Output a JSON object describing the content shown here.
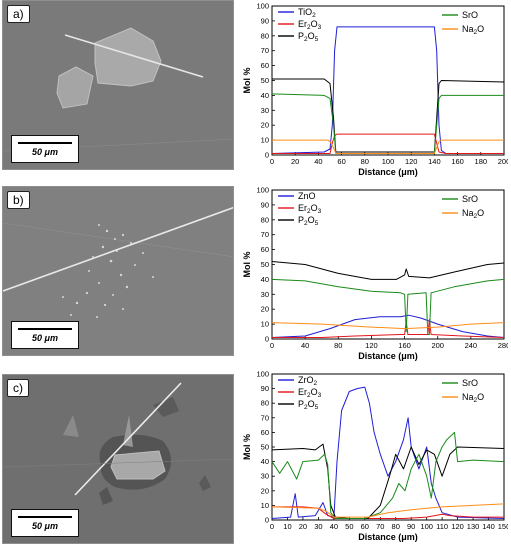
{
  "panels": [
    {
      "label": "a)",
      "scale_label": "50 μm"
    },
    {
      "label": "b)",
      "scale_label": "50 μm"
    },
    {
      "label": "c)",
      "scale_label": "50 μm"
    }
  ],
  "chart_data": [
    {
      "type": "line",
      "xlabel": "Distance (μm)",
      "ylabel": "Mol %",
      "xlim": [
        0,
        200
      ],
      "ylim": [
        0,
        100
      ],
      "xticks": [
        0,
        20,
        40,
        60,
        80,
        100,
        120,
        140,
        160,
        180,
        200
      ],
      "yticks": [
        0,
        10,
        20,
        30,
        40,
        50,
        60,
        70,
        80,
        90,
        100
      ],
      "legend": [
        {
          "name": "TiO2",
          "main": "TiO",
          "sub": "2",
          "color": "#1f1fd6"
        },
        {
          "name": "Er2O3",
          "main": "Er",
          "sub": "2",
          "tail": "O",
          "sub2": "3",
          "color": "#e3161b"
        },
        {
          "name": "P2O5",
          "main": "P",
          "sub": "2",
          "tail": "O",
          "sub2": "5",
          "color": "#000000"
        },
        {
          "name": "SrO",
          "main": "SrO",
          "color": "#1a8a1a"
        },
        {
          "name": "Na2O",
          "main": "Na",
          "sub": "2",
          "tail": "O",
          "color": "#ff8c1a"
        }
      ],
      "series": [
        {
          "name": "TiO2",
          "color": "#1f1fd6",
          "points": [
            [
              0,
              1
            ],
            [
              45,
              2
            ],
            [
              50,
              4
            ],
            [
              52,
              20
            ],
            [
              54,
              70
            ],
            [
              56,
              86
            ],
            [
              100,
              86
            ],
            [
              140,
              86
            ],
            [
              142,
              70
            ],
            [
              144,
              20
            ],
            [
              146,
              3
            ],
            [
              150,
              1
            ],
            [
              200,
              1
            ]
          ]
        },
        {
          "name": "Er2O3",
          "color": "#e3161b",
          "points": [
            [
              0,
              1
            ],
            [
              50,
              1
            ],
            [
              52,
              8
            ],
            [
              54,
              13
            ],
            [
              56,
              14
            ],
            [
              140,
              14
            ],
            [
              142,
              8
            ],
            [
              144,
              2
            ],
            [
              150,
              1
            ],
            [
              200,
              1
            ]
          ]
        },
        {
          "name": "P2O5",
          "color": "#000000",
          "points": [
            [
              0,
              51
            ],
            [
              45,
              51
            ],
            [
              50,
              48
            ],
            [
              53,
              25
            ],
            [
              55,
              2
            ],
            [
              140,
              2
            ],
            [
              142,
              25
            ],
            [
              144,
              48
            ],
            [
              146,
              50
            ],
            [
              200,
              49
            ]
          ]
        },
        {
          "name": "SrO",
          "color": "#1a8a1a",
          "points": [
            [
              0,
              41
            ],
            [
              45,
              40
            ],
            [
              50,
              38
            ],
            [
              53,
              20
            ],
            [
              55,
              1
            ],
            [
              140,
              1
            ],
            [
              142,
              20
            ],
            [
              144,
              38
            ],
            [
              146,
              40
            ],
            [
              200,
              40
            ]
          ]
        },
        {
          "name": "Na2O",
          "color": "#ff8c1a",
          "points": [
            [
              0,
              10
            ],
            [
              48,
              10
            ],
            [
              50,
              9
            ],
            [
              53,
              5
            ],
            [
              55,
              1
            ],
            [
              140,
              1
            ],
            [
              142,
              5
            ],
            [
              144,
              9
            ],
            [
              146,
              10
            ],
            [
              200,
              10
            ]
          ]
        }
      ]
    },
    {
      "type": "line",
      "xlabel": "Distance (μm)",
      "ylabel": "Mol %",
      "xlim": [
        0,
        280
      ],
      "ylim": [
        0,
        100
      ],
      "xticks": [
        0,
        40,
        80,
        120,
        160,
        200,
        240,
        280
      ],
      "yticks": [
        0,
        10,
        20,
        30,
        40,
        50,
        60,
        70,
        80,
        90,
        100
      ],
      "legend": [
        {
          "name": "ZnO",
          "main": "ZnO",
          "color": "#1f1fd6"
        },
        {
          "name": "Er2O3",
          "main": "Er",
          "sub": "2",
          "tail": "O",
          "sub2": "3",
          "color": "#e3161b"
        },
        {
          "name": "P2O5",
          "main": "P",
          "sub": "2",
          "tail": "O",
          "sub2": "5",
          "color": "#000000"
        },
        {
          "name": "SrO",
          "main": "SrO",
          "color": "#1a8a1a"
        },
        {
          "name": "Na2O",
          "main": "Na",
          "sub": "2",
          "tail": "O",
          "color": "#ff8c1a"
        }
      ],
      "series": [
        {
          "name": "ZnO",
          "color": "#1f1fd6",
          "points": [
            [
              0,
              1
            ],
            [
              40,
              2
            ],
            [
              70,
              7
            ],
            [
              100,
              13
            ],
            [
              130,
              15
            ],
            [
              155,
              15
            ],
            [
              165,
              16
            ],
            [
              180,
              14
            ],
            [
              200,
              10
            ],
            [
              230,
              5
            ],
            [
              260,
              2
            ],
            [
              280,
              1
            ]
          ]
        },
        {
          "name": "Er2O3",
          "color": "#e3161b",
          "points": [
            [
              0,
              1
            ],
            [
              60,
              1
            ],
            [
              100,
              2
            ],
            [
              155,
              3
            ],
            [
              160,
              3
            ],
            [
              162,
              12
            ],
            [
              164,
              3
            ],
            [
              188,
              3
            ],
            [
              190,
              13
            ],
            [
              192,
              3
            ],
            [
              230,
              2
            ],
            [
              280,
              1
            ]
          ]
        },
        {
          "name": "P2O5",
          "color": "#000000",
          "points": [
            [
              0,
              52
            ],
            [
              40,
              50
            ],
            [
              80,
              44
            ],
            [
              120,
              40
            ],
            [
              150,
              40
            ],
            [
              160,
              43
            ],
            [
              162,
              47
            ],
            [
              165,
              42
            ],
            [
              190,
              41
            ],
            [
              220,
              45
            ],
            [
              260,
              50
            ],
            [
              280,
              51
            ]
          ]
        },
        {
          "name": "SrO",
          "color": "#1a8a1a",
          "points": [
            [
              0,
              40
            ],
            [
              40,
              39
            ],
            [
              80,
              35
            ],
            [
              120,
              32
            ],
            [
              155,
              31
            ],
            [
              160,
              30
            ],
            [
              162,
              5
            ],
            [
              164,
              30
            ],
            [
              186,
              31
            ],
            [
              188,
              3
            ],
            [
              190,
              3
            ],
            [
              192,
              31
            ],
            [
              220,
              35
            ],
            [
              260,
              39
            ],
            [
              280,
              40
            ]
          ]
        },
        {
          "name": "Na2O",
          "color": "#ff8c1a",
          "points": [
            [
              0,
              11
            ],
            [
              60,
              10
            ],
            [
              120,
              8
            ],
            [
              160,
              7
            ],
            [
              200,
              8
            ],
            [
              240,
              10
            ],
            [
              280,
              11
            ]
          ]
        }
      ]
    },
    {
      "type": "line",
      "xlabel": "Distance (μm)",
      "ylabel": "Mol %",
      "xlim": [
        0,
        150
      ],
      "ylim": [
        0,
        100
      ],
      "xticks": [
        0,
        10,
        20,
        30,
        40,
        50,
        60,
        70,
        80,
        90,
        100,
        110,
        120,
        130,
        140,
        150
      ],
      "yticks": [
        0,
        10,
        20,
        30,
        40,
        50,
        60,
        70,
        80,
        90,
        100
      ],
      "legend": [
        {
          "name": "ZrO2",
          "main": "ZrO",
          "sub": "2",
          "color": "#1f1fd6"
        },
        {
          "name": "Er2O3",
          "main": "Er",
          "sub": "2",
          "tail": "O",
          "sub2": "3",
          "color": "#e3161b"
        },
        {
          "name": "P2O5",
          "main": "P",
          "sub": "2",
          "tail": "O",
          "sub2": "5",
          "color": "#000000"
        },
        {
          "name": "SrO",
          "main": "SrO",
          "color": "#1a8a1a"
        },
        {
          "name": "Na2O",
          "main": "Na",
          "sub": "2",
          "tail": "O",
          "color": "#ff8c1a"
        }
      ],
      "series": [
        {
          "name": "ZrO2",
          "color": "#1f1fd6",
          "points": [
            [
              0,
              1
            ],
            [
              12,
              2
            ],
            [
              15,
              18
            ],
            [
              17,
              2
            ],
            [
              28,
              3
            ],
            [
              33,
              12
            ],
            [
              36,
              3
            ],
            [
              40,
              2
            ],
            [
              42,
              40
            ],
            [
              45,
              75
            ],
            [
              50,
              88
            ],
            [
              55,
              90
            ],
            [
              60,
              91
            ],
            [
              63,
              80
            ],
            [
              66,
              60
            ],
            [
              70,
              45
            ],
            [
              75,
              30
            ],
            [
              80,
              40
            ],
            [
              85,
              55
            ],
            [
              88,
              70
            ],
            [
              90,
              50
            ],
            [
              95,
              35
            ],
            [
              100,
              50
            ],
            [
              103,
              25
            ],
            [
              106,
              15
            ],
            [
              110,
              5
            ],
            [
              120,
              2
            ],
            [
              150,
              1
            ]
          ]
        },
        {
          "name": "Er2O3",
          "color": "#e3161b",
          "points": [
            [
              0,
              9
            ],
            [
              20,
              9
            ],
            [
              30,
              8
            ],
            [
              35,
              4
            ],
            [
              40,
              1
            ],
            [
              70,
              1
            ],
            [
              85,
              1
            ],
            [
              100,
              2
            ],
            [
              110,
              4
            ],
            [
              115,
              3
            ],
            [
              130,
              2
            ],
            [
              150,
              2
            ]
          ]
        },
        {
          "name": "P2O5",
          "color": "#000000",
          "points": [
            [
              0,
              48
            ],
            [
              20,
              49
            ],
            [
              28,
              48
            ],
            [
              33,
              52
            ],
            [
              36,
              35
            ],
            [
              38,
              10
            ],
            [
              41,
              2
            ],
            [
              50,
              1
            ],
            [
              62,
              1
            ],
            [
              70,
              10
            ],
            [
              76,
              30
            ],
            [
              80,
              45
            ],
            [
              85,
              35
            ],
            [
              90,
              50
            ],
            [
              95,
              38
            ],
            [
              100,
              48
            ],
            [
              105,
              45
            ],
            [
              110,
              30
            ],
            [
              115,
              45
            ],
            [
              120,
              50
            ],
            [
              150,
              49
            ]
          ]
        },
        {
          "name": "SrO",
          "color": "#1a8a1a",
          "points": [
            [
              0,
              40
            ],
            [
              5,
              32
            ],
            [
              10,
              40
            ],
            [
              16,
              28
            ],
            [
              20,
              40
            ],
            [
              30,
              41
            ],
            [
              34,
              45
            ],
            [
              36,
              38
            ],
            [
              38,
              5
            ],
            [
              41,
              1
            ],
            [
              60,
              1
            ],
            [
              70,
              5
            ],
            [
              78,
              15
            ],
            [
              82,
              25
            ],
            [
              86,
              20
            ],
            [
              90,
              35
            ],
            [
              95,
              45
            ],
            [
              100,
              30
            ],
            [
              103,
              15
            ],
            [
              106,
              40
            ],
            [
              110,
              50
            ],
            [
              113,
              55
            ],
            [
              118,
              60
            ],
            [
              120,
              40
            ],
            [
              130,
              41
            ],
            [
              150,
              40
            ]
          ]
        },
        {
          "name": "Na2O",
          "color": "#ff8c1a",
          "points": [
            [
              0,
              9
            ],
            [
              30,
              8
            ],
            [
              35,
              6
            ],
            [
              40,
              2
            ],
            [
              62,
              2
            ],
            [
              75,
              5
            ],
            [
              90,
              7
            ],
            [
              100,
              8
            ],
            [
              110,
              9
            ],
            [
              130,
              10
            ],
            [
              150,
              11
            ]
          ]
        }
      ]
    }
  ]
}
